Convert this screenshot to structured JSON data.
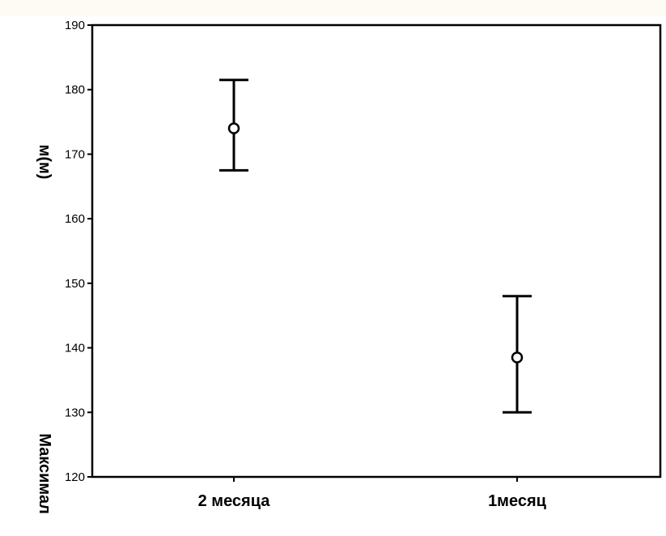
{
  "chart_data": {
    "type": "errorbar",
    "categories": [
      "2 месяца",
      "1месяц"
    ],
    "means": [
      174,
      138.5
    ],
    "error_low": [
      167.5,
      130
    ],
    "error_high": [
      181.5,
      148
    ],
    "yticks": [
      120,
      130,
      140,
      150,
      160,
      170,
      180,
      190
    ],
    "ylim": [
      120,
      190
    ],
    "ylabel_top": "м(м)",
    "ylabel_bottom": "Максимал",
    "grid": false
  }
}
